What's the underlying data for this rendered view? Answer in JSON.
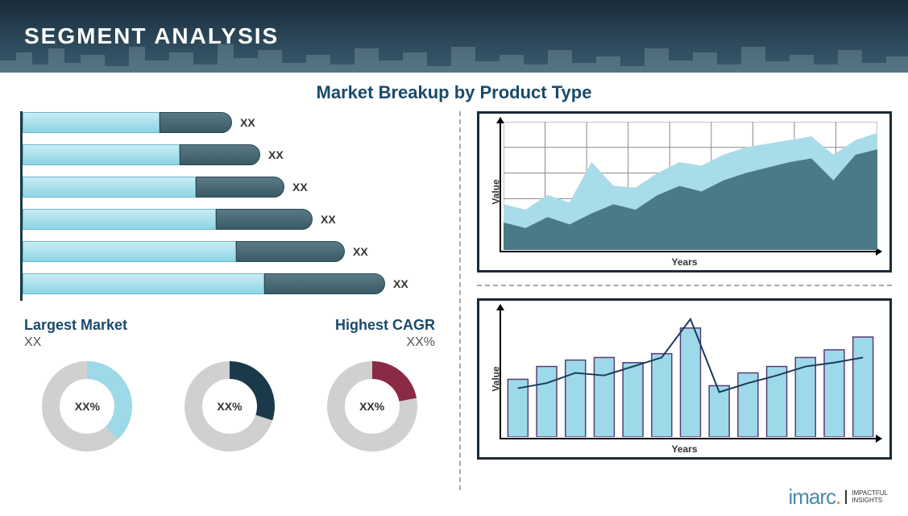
{
  "header": {
    "title": "SEGMENT ANALYSIS"
  },
  "subtitle": "Market Breakup by Product Type",
  "hbar_chart": {
    "type": "bar-horizontal-stacked",
    "colors": {
      "light": "#9dd9e8",
      "dark": "#4a6a75",
      "axis": "#1a3a4a"
    },
    "bars": [
      {
        "light_w": 170,
        "dark_w": 90,
        "label": "XX"
      },
      {
        "light_w": 195,
        "dark_w": 100,
        "label": "XX"
      },
      {
        "light_w": 215,
        "dark_w": 110,
        "label": "XX"
      },
      {
        "light_w": 240,
        "dark_w": 120,
        "label": "XX"
      },
      {
        "light_w": 265,
        "dark_w": 135,
        "label": "XX"
      },
      {
        "light_w": 300,
        "dark_w": 150,
        "label": "XX"
      }
    ]
  },
  "metrics": {
    "left_title": "Largest Market",
    "left_value": "XX",
    "right_title": "Highest CAGR",
    "right_value": "XX%"
  },
  "donuts": [
    {
      "pct": 38,
      "color": "#9dd9e8",
      "bg": "#d0d0d0",
      "label": "XX%"
    },
    {
      "pct": 30,
      "color": "#1a3a4a",
      "bg": "#d0d0d0",
      "label": "XX%"
    },
    {
      "pct": 22,
      "color": "#8a2a45",
      "bg": "#d0d0d0",
      "label": "XX%"
    }
  ],
  "area_chart": {
    "type": "area-stacked",
    "xlabel": "Years",
    "ylabel": "Value",
    "grid_color": "#888",
    "grid_cols": 9,
    "grid_rows": 5,
    "colors": {
      "top": "#a8dce8",
      "bottom": "#4a7a85"
    },
    "x": [
      0,
      1,
      2,
      3,
      4,
      5,
      6,
      7,
      8,
      9,
      10,
      11,
      12,
      13,
      14,
      15,
      16,
      17
    ],
    "bottom_y": [
      15,
      12,
      18,
      14,
      20,
      25,
      22,
      30,
      35,
      32,
      38,
      42,
      45,
      48,
      50,
      38,
      52,
      55
    ],
    "top_y": [
      25,
      22,
      30,
      26,
      48,
      35,
      34,
      42,
      48,
      46,
      52,
      56,
      58,
      60,
      62,
      52,
      60,
      64
    ]
  },
  "combo_chart": {
    "type": "bar-line",
    "xlabel": "Years",
    "ylabel": "Value",
    "bar_color": "#9dd9e8",
    "bar_border": "#5a3a7a",
    "line_color": "#1a3a5a",
    "bars": [
      45,
      55,
      60,
      62,
      58,
      65,
      85,
      40,
      50,
      55,
      62,
      68,
      78
    ],
    "line": [
      38,
      42,
      50,
      48,
      55,
      62,
      92,
      35,
      42,
      48,
      55,
      58,
      62
    ]
  },
  "logo": {
    "brand": "imarc",
    "tag1": "IMPACTFUL",
    "tag2": "INSIGHTS"
  }
}
